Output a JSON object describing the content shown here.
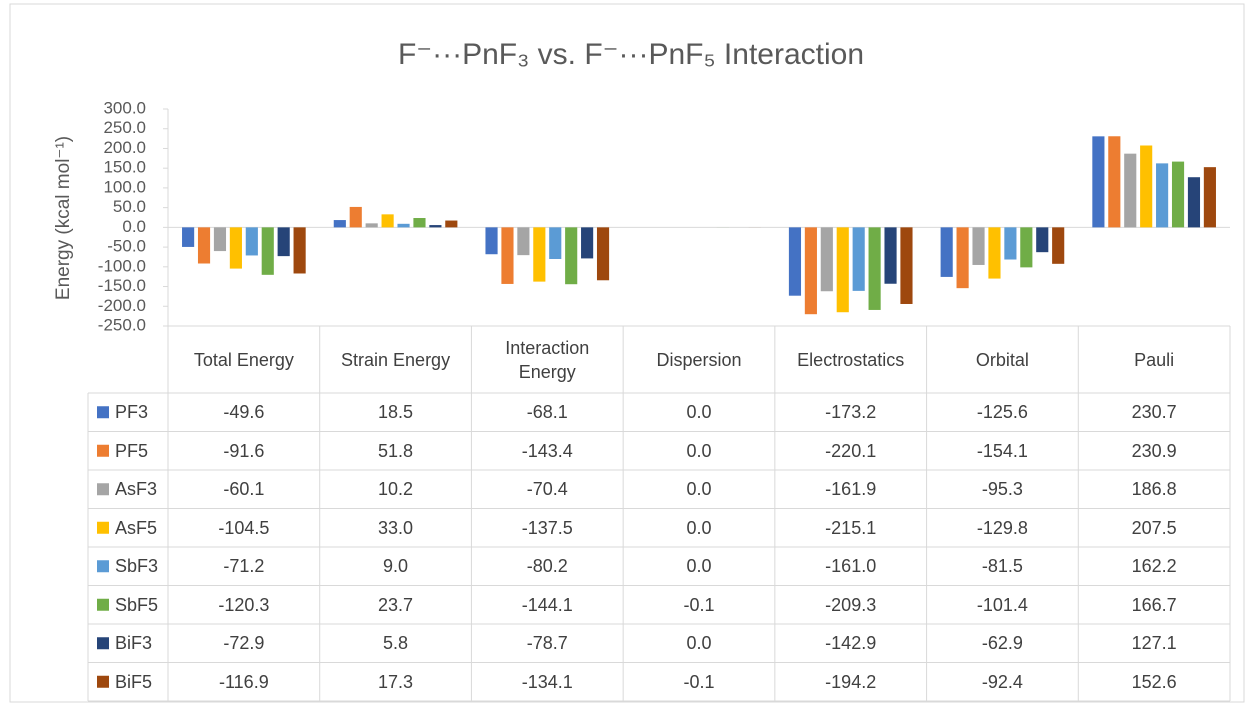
{
  "chart_data": {
    "type": "bar",
    "title": "F⁻···PnF₃ vs. F⁻···PnF₅ Interaction",
    "y_label": "Energy (kcal mol⁻¹)",
    "categories": [
      "Total Energy",
      "Strain Energy",
      "Interaction Energy",
      "Dispersion",
      "Electrostatics",
      "Orbital",
      "Pauli"
    ],
    "ylim": [
      -250,
      300
    ],
    "yticks": [
      {
        "value": 300,
        "label": "300.0"
      },
      {
        "value": 250,
        "label": "250.0"
      },
      {
        "value": 200,
        "label": "200.0"
      },
      {
        "value": 150,
        "label": "150.0"
      },
      {
        "value": 100,
        "label": "100.0"
      },
      {
        "value": 50,
        "label": "50.0"
      },
      {
        "value": 0,
        "label": "0.0"
      },
      {
        "value": -50,
        "label": "-50.0"
      },
      {
        "value": -100,
        "label": "-100.0"
      },
      {
        "value": -150,
        "label": "-150.0"
      },
      {
        "value": -200,
        "label": "-200.0"
      },
      {
        "value": -250,
        "label": "-250.0"
      }
    ],
    "series": [
      {
        "name": "PF3",
        "color": "#4472c4",
        "values": [
          -49.6,
          18.5,
          -68.1,
          0,
          -173.2,
          -125.6,
          230.7
        ],
        "value_labels": [
          "-49.6",
          "18.5",
          "-68.1",
          "0.0",
          "-173.2",
          "-125.6",
          "230.7"
        ]
      },
      {
        "name": "PF5",
        "color": "#ed7d31",
        "values": [
          -91.6,
          51.8,
          -143.4,
          0,
          -220.1,
          -154.1,
          230.9
        ],
        "value_labels": [
          "-91.6",
          "51.8",
          "-143.4",
          "0.0",
          "-220.1",
          "-154.1",
          "230.9"
        ]
      },
      {
        "name": "AsF3",
        "color": "#a5a5a5",
        "values": [
          -60.1,
          10.2,
          -70.4,
          0,
          -161.9,
          -95.3,
          186.8
        ],
        "value_labels": [
          "-60.1",
          "10.2",
          "-70.4",
          "0.0",
          "-161.9",
          "-95.3",
          "186.8"
        ]
      },
      {
        "name": "AsF5",
        "color": "#ffc000",
        "values": [
          -104.5,
          33,
          -137.5,
          0,
          -215.1,
          -129.8,
          207.5
        ],
        "value_labels": [
          "-104.5",
          "33.0",
          "-137.5",
          "0.0",
          "-215.1",
          "-129.8",
          "207.5"
        ]
      },
      {
        "name": "SbF3",
        "color": "#5b9bd5",
        "values": [
          -71.2,
          9,
          -80.2,
          0,
          -161,
          -81.5,
          162.2
        ],
        "value_labels": [
          "-71.2",
          "9.0",
          "-80.2",
          "0.0",
          "-161.0",
          "-81.5",
          "162.2"
        ]
      },
      {
        "name": "SbF5",
        "color": "#70ad47",
        "values": [
          -120.3,
          23.7,
          -144.1,
          -0.1,
          -209.3,
          -101.4,
          166.7
        ],
        "value_labels": [
          "-120.3",
          "23.7",
          "-144.1",
          "-0.1",
          "-209.3",
          "-101.4",
          "166.7"
        ]
      },
      {
        "name": "BiF3",
        "color": "#264478",
        "values": [
          -72.9,
          5.8,
          -78.7,
          0,
          -142.9,
          -62.9,
          127.1
        ],
        "value_labels": [
          "-72.9",
          "5.8",
          "-78.7",
          "0.0",
          "-142.9",
          "-62.9",
          "127.1"
        ]
      },
      {
        "name": "BiF5",
        "color": "#9e480e",
        "values": [
          -116.9,
          17.3,
          -134.1,
          -0.1,
          -194.2,
          -92.4,
          152.6
        ],
        "value_labels": [
          "-116.9",
          "17.3",
          "-134.1",
          "-0.1",
          "-194.2",
          "-92.4",
          "152.6"
        ]
      }
    ]
  }
}
